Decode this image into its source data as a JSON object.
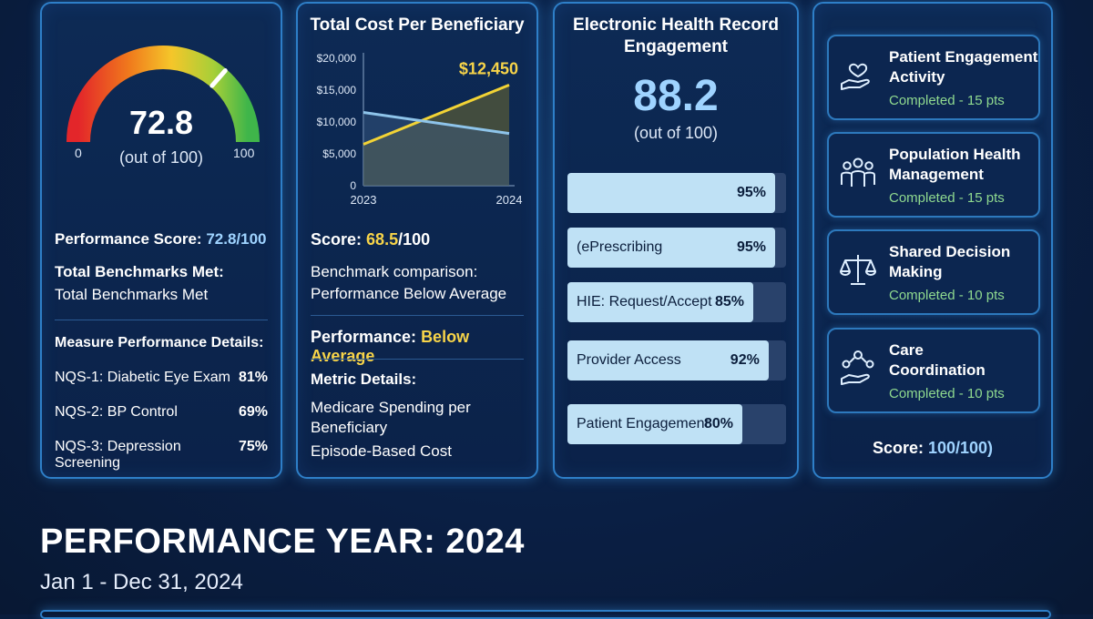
{
  "card_quality": {
    "score": "72.8",
    "out_of": "(out of 100)",
    "min": "0",
    "max": "100",
    "gauge_value": 0.728,
    "performance_label": "Performance Score:",
    "performance_value": "72.8/100",
    "benchmarks_label": "Total Benchmarks Met:",
    "benchmarks_value": "Total Benchmarks Met",
    "details_label": "Measure Performance Details:",
    "measures": [
      {
        "name": "NQS-1: Diabetic Eye Exam",
        "pct": "81%"
      },
      {
        "name": "NQS-2: BP Control",
        "pct": "69%"
      },
      {
        "name": "NQS-3: Depression Screening",
        "pct": "75%"
      }
    ]
  },
  "card_cost": {
    "title": "Total Cost Per Beneficiary",
    "callout": "$12,450",
    "score_label": "Score:",
    "score_value": "68.5",
    "score_suffix": "/100",
    "benchmark_label": "Benchmark comparison:",
    "benchmark_value": "Performance Below Average",
    "performance_label": "Performance:",
    "performance_value": "Below Average",
    "metric_label": "Metric Details:",
    "metrics": [
      "Medicare Spending per Beneficiary",
      "Episode-Based Cost"
    ]
  },
  "chart_data": {
    "type": "line",
    "x": [
      "2023",
      "2024"
    ],
    "yticks": [
      "$20,000",
      "$15,000",
      "$10,000",
      "$5,000",
      "0"
    ],
    "ylim": [
      0,
      20000
    ],
    "series": [
      {
        "values": [
          6500,
          15800
        ],
        "color": "#f2d335"
      },
      {
        "values": [
          11500,
          8200
        ],
        "color": "#8ec4ea"
      }
    ],
    "callout": "$12,450"
  },
  "card_ehr": {
    "title_line1": "Electronic Health Record",
    "title_line2": "Engagement",
    "score": "88.2",
    "out_of": "(out of 100)",
    "bars": [
      {
        "label": "",
        "pct": "95%",
        "value": 0.95
      },
      {
        "label": "(ePrescribing",
        "pct": "95%",
        "value": 0.95
      },
      {
        "label": "HIE: Request/Accept",
        "pct": "85%",
        "value": 0.85
      },
      {
        "label": "Provider Access",
        "pct": "92%",
        "value": 0.92
      },
      {
        "label": "Patient Engagement",
        "pct": "80%",
        "value": 0.8
      }
    ]
  },
  "card_activities": {
    "items": [
      {
        "line1": "Patient Engagement",
        "line2": "Activity",
        "status": "Completed - 15 pts",
        "icon": "hand-heart-icon"
      },
      {
        "line1": "Population Health",
        "line2": "Management",
        "status": "Completed - 15 pts",
        "icon": "people-group-icon"
      },
      {
        "line1": "Shared Decision",
        "line2": "Making",
        "status": "Completed - 10 pts",
        "icon": "scales-icon"
      },
      {
        "line1": "Care",
        "line2": "Coordination",
        "status": "Completed - 10 pts",
        "icon": "care-network-icon"
      }
    ],
    "score_label": "Score:",
    "score_value": "100/100)"
  },
  "footer": {
    "title": "PERFORMANCE YEAR: 2024",
    "date_range": "Jan 1 - Dec 31, 2024"
  },
  "colors": {
    "accent_blue": "#9fd3ff",
    "accent_yellow": "#f7d449",
    "completed_green": "#8fd98f",
    "card_border": "#2e7fc8"
  }
}
